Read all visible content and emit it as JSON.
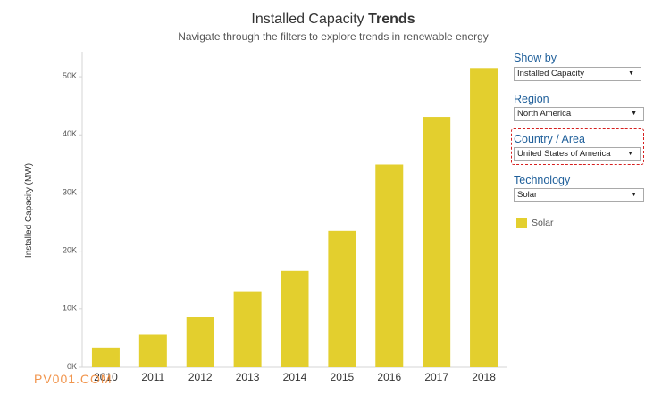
{
  "header": {
    "title_regular": "Installed Capacity ",
    "title_bold": "Trends",
    "subtitle": "Navigate through the filters to explore trends in renewable energy"
  },
  "filters": {
    "show_by": {
      "label": "Show by",
      "value": "Installed Capacity"
    },
    "region": {
      "label": "Region",
      "value": "North America"
    },
    "country": {
      "label": "Country / Area",
      "value": "United States of America"
    },
    "technology": {
      "label": "Technology",
      "value": "Solar"
    }
  },
  "legend": {
    "label": "Solar",
    "color": "#e3cf2e"
  },
  "watermark": "PV001.COM",
  "icons": {
    "dropdown": "caret-down-icon"
  },
  "chart_data": {
    "type": "bar",
    "title": "Installed Capacity Trends",
    "xlabel": "",
    "ylabel": "Installed Capacity (MW)",
    "categories": [
      "2010",
      "2011",
      "2012",
      "2013",
      "2014",
      "2015",
      "2016",
      "2017",
      "2018"
    ],
    "series": [
      {
        "name": "Solar",
        "color": "#e3cf2e",
        "values": [
          3400,
          5600,
          8600,
          13100,
          16600,
          23500,
          34900,
          43100,
          51500
        ]
      }
    ],
    "ylim": [
      0,
      54000
    ],
    "yticks": [
      0,
      10000,
      20000,
      30000,
      40000,
      50000
    ],
    "ytick_labels": [
      "0K",
      "10K",
      "20K",
      "30K",
      "40K",
      "50K"
    ],
    "grid": false,
    "legend": "right"
  }
}
